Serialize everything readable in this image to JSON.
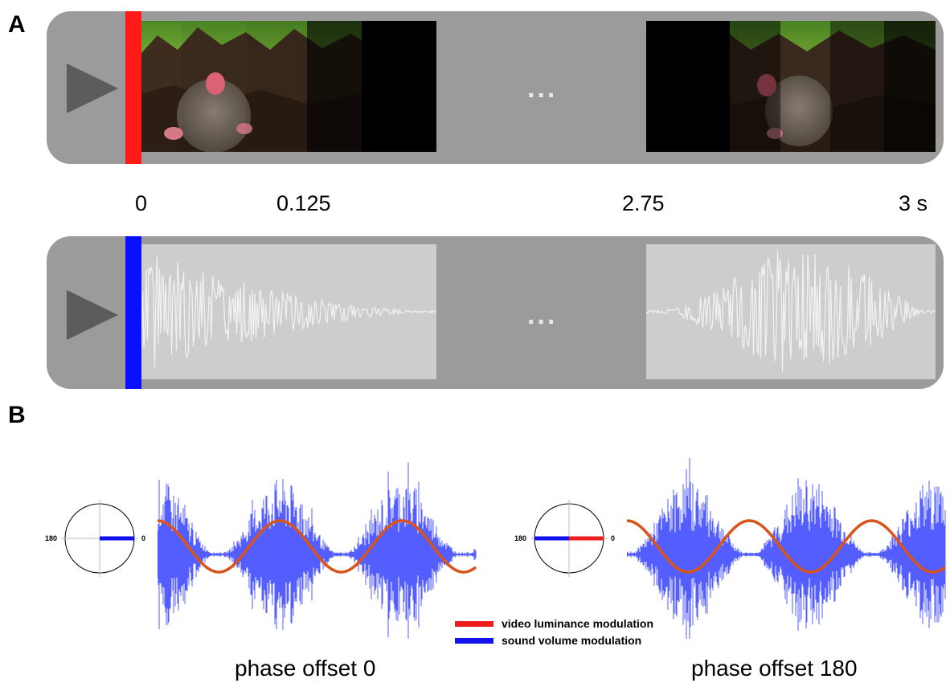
{
  "panel_a": {
    "label": "A",
    "time_labels": [
      "0",
      "0.125",
      "2.75",
      "3 s"
    ],
    "ellipsis": "...",
    "video_track": {
      "play_icon": "play-triangle-icon",
      "cursor_color": "#ff1a1a",
      "frame_brightness_start": [
        1.0,
        0.95,
        0.9,
        0.35,
        0.0
      ],
      "frame_brightness_end": [
        0.0,
        0.5,
        0.95,
        0.55,
        0.25
      ]
    },
    "audio_track": {
      "play_icon": "play-triangle-icon",
      "cursor_color": "#0a10ff"
    }
  },
  "panel_b": {
    "label": "B",
    "examples": [
      {
        "caption": "phase offset 0",
        "phase_deg": 0,
        "dial_left": "180",
        "dial_right": "0"
      },
      {
        "caption": "phase offset 180",
        "phase_deg": 180,
        "dial_left": "180",
        "dial_right": "0"
      }
    ],
    "legend": [
      {
        "label": "video luminance modulation",
        "color": "#ee1c1c"
      },
      {
        "label": "sound volume modulation",
        "color": "#1212ee"
      }
    ],
    "luminance_curve_color": "#d9541a",
    "sound_wave_color": "#2a36ff"
  }
}
